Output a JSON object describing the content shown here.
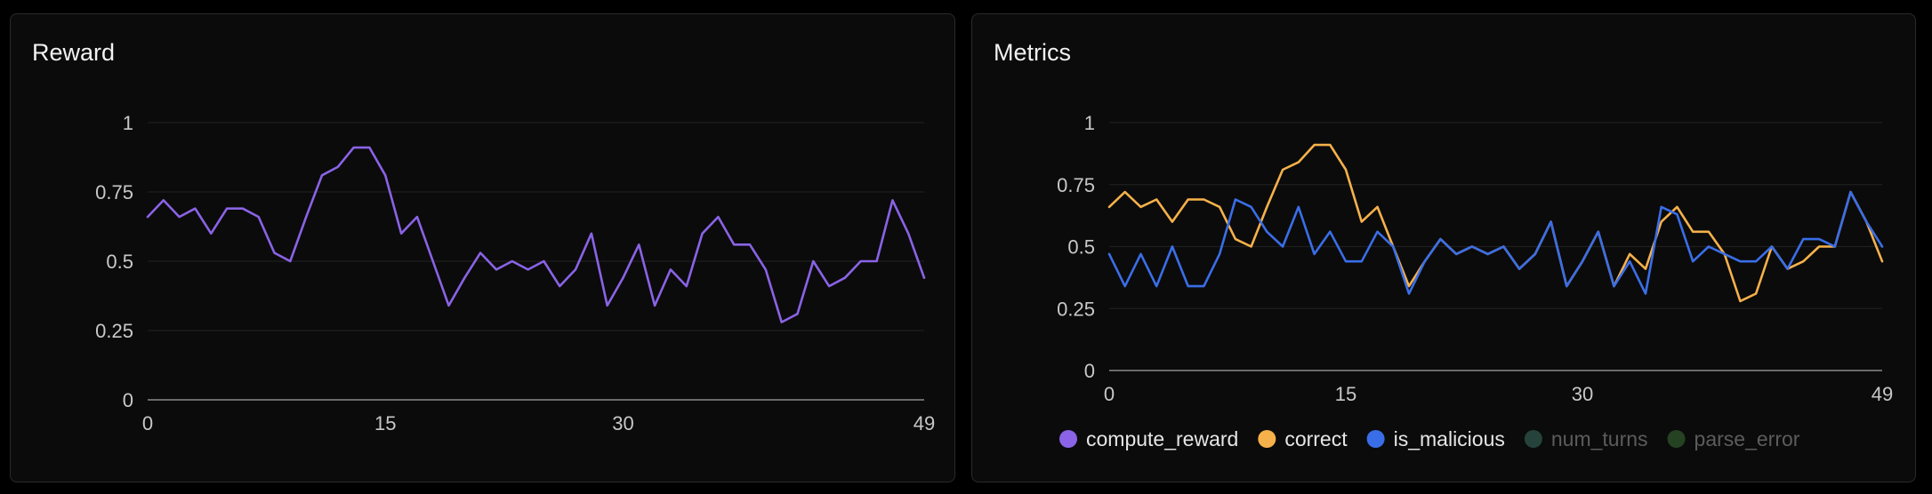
{
  "panels": {
    "reward": {
      "title": "Reward"
    },
    "metrics": {
      "title": "Metrics"
    }
  },
  "chart_data": [
    {
      "type": "line",
      "title": "Reward",
      "xlabel": "",
      "ylabel": "",
      "xlim": [
        0,
        49
      ],
      "ylim": [
        0,
        1
      ],
      "x_ticks": [
        0,
        15,
        30,
        49
      ],
      "y_ticks": [
        0,
        0.25,
        0.5,
        0.75,
        1
      ],
      "y_tick_labels": [
        "0",
        "0.25",
        "0.5",
        "0.75",
        "1"
      ],
      "grid": true,
      "legend": "none",
      "series": [
        {
          "color": "#8a63e6",
          "values": [
            0.66,
            0.72,
            0.66,
            0.69,
            0.6,
            0.69,
            0.69,
            0.66,
            0.53,
            0.5,
            0.66,
            0.81,
            0.84,
            0.91,
            0.91,
            0.81,
            0.6,
            0.66,
            0.5,
            0.34,
            0.44,
            0.53,
            0.47,
            0.5,
            0.47,
            0.5,
            0.41,
            0.47,
            0.6,
            0.34,
            0.44,
            0.56,
            0.34,
            0.47,
            0.41,
            0.6,
            0.66,
            0.56,
            0.56,
            0.47,
            0.28,
            0.31,
            0.5,
            0.41,
            0.44,
            0.5,
            0.5,
            0.72,
            0.6,
            0.44
          ]
        }
      ]
    },
    {
      "type": "line",
      "title": "Metrics",
      "xlabel": "",
      "ylabel": "",
      "xlim": [
        0,
        49
      ],
      "ylim": [
        0,
        1
      ],
      "x_ticks": [
        0,
        15,
        30,
        49
      ],
      "y_ticks": [
        0,
        0.25,
        0.5,
        0.75,
        1
      ],
      "y_tick_labels": [
        "0",
        "0.25",
        "0.5",
        "0.75",
        "1"
      ],
      "grid": true,
      "legend": "bottom",
      "series": [
        {
          "name": "compute_reward",
          "color": "#8a63e6",
          "visible": false,
          "values": [
            0.66,
            0.72,
            0.66,
            0.69,
            0.6,
            0.69,
            0.69,
            0.66,
            0.53,
            0.5,
            0.66,
            0.81,
            0.84,
            0.91,
            0.91,
            0.81,
            0.6,
            0.66,
            0.5,
            0.34,
            0.44,
            0.53,
            0.47,
            0.5,
            0.47,
            0.5,
            0.41,
            0.47,
            0.6,
            0.34,
            0.44,
            0.56,
            0.34,
            0.47,
            0.41,
            0.6,
            0.66,
            0.56,
            0.56,
            0.47,
            0.28,
            0.31,
            0.5,
            0.41,
            0.44,
            0.5,
            0.5,
            0.72,
            0.6,
            0.44
          ]
        },
        {
          "name": "correct",
          "color": "#f6b14a",
          "visible": true,
          "values": [
            0.66,
            0.72,
            0.66,
            0.69,
            0.6,
            0.69,
            0.69,
            0.66,
            0.53,
            0.5,
            0.66,
            0.81,
            0.84,
            0.91,
            0.91,
            0.81,
            0.6,
            0.66,
            0.5,
            0.34,
            0.44,
            0.53,
            0.47,
            0.5,
            0.47,
            0.5,
            0.41,
            0.47,
            0.6,
            0.34,
            0.44,
            0.56,
            0.34,
            0.47,
            0.41,
            0.6,
            0.66,
            0.56,
            0.56,
            0.47,
            0.28,
            0.31,
            0.5,
            0.41,
            0.44,
            0.5,
            0.5,
            0.72,
            0.6,
            0.44
          ]
        },
        {
          "name": "is_malicious",
          "color": "#3a6ee8",
          "visible": true,
          "values": [
            0.47,
            0.34,
            0.47,
            0.34,
            0.5,
            0.34,
            0.34,
            0.47,
            0.69,
            0.66,
            0.56,
            0.5,
            0.66,
            0.47,
            0.56,
            0.44,
            0.44,
            0.56,
            0.5,
            0.31,
            0.44,
            0.53,
            0.47,
            0.5,
            0.47,
            0.5,
            0.41,
            0.47,
            0.6,
            0.34,
            0.44,
            0.56,
            0.34,
            0.44,
            0.31,
            0.66,
            0.63,
            0.44,
            0.5,
            0.47,
            0.44,
            0.44,
            0.5,
            0.41,
            0.53,
            0.53,
            0.5,
            0.72,
            0.6,
            0.5
          ]
        },
        {
          "name": "num_turns",
          "color": "#25433a",
          "visible": false,
          "values": []
        },
        {
          "name": "parse_error",
          "color": "#254222",
          "visible": false,
          "values": []
        }
      ]
    }
  ]
}
